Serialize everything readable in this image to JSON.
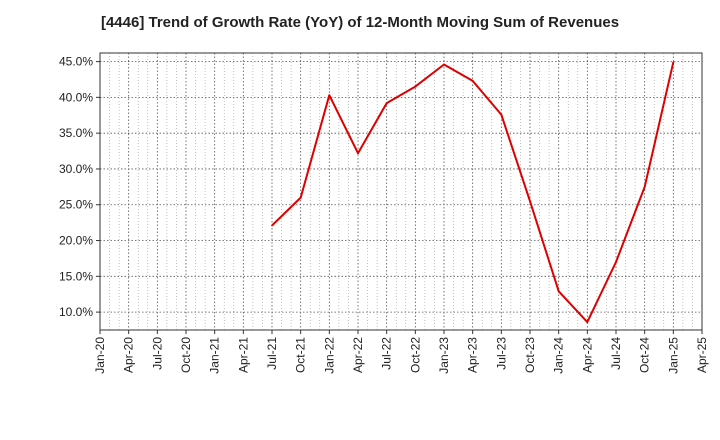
{
  "chart_data": {
    "type": "line",
    "title": "[4446]  Trend of Growth Rate (YoY) of 12-Month Moving Sum of Revenues",
    "xlabel": "",
    "ylabel": "",
    "x_ticks": [
      "Jan-20",
      "Apr-20",
      "Jul-20",
      "Oct-20",
      "Jan-21",
      "Apr-21",
      "Jul-21",
      "Oct-21",
      "Jan-22",
      "Apr-22",
      "Jul-22",
      "Oct-22",
      "Jan-23",
      "Apr-23",
      "Jul-23",
      "Oct-23",
      "Jan-24",
      "Apr-24",
      "Jul-24",
      "Oct-24",
      "Jan-25",
      "Apr-25"
    ],
    "y_ticks": [
      "10.0%",
      "15.0%",
      "20.0%",
      "25.0%",
      "30.0%",
      "35.0%",
      "40.0%",
      "45.0%"
    ],
    "ylim": [
      7.5,
      46.2
    ],
    "grid": true,
    "series": [
      {
        "color": "#dd0000",
        "points": [
          {
            "x": "Jul-21",
            "y": 22.1
          },
          {
            "x": "Oct-21",
            "y": 26.0
          },
          {
            "x": "Jan-22",
            "y": 40.3
          },
          {
            "x": "Apr-22",
            "y": 32.2
          },
          {
            "x": "Jul-22",
            "y": 39.2
          },
          {
            "x": "Oct-22",
            "y": 41.5
          },
          {
            "x": "Jan-23",
            "y": 44.6
          },
          {
            "x": "Apr-23",
            "y": 42.3
          },
          {
            "x": "Jul-23",
            "y": 37.6
          },
          {
            "x": "Oct-23",
            "y": 25.5
          },
          {
            "x": "Jan-24",
            "y": 12.9
          },
          {
            "x": "Apr-24",
            "y": 8.6
          },
          {
            "x": "Jul-24",
            "y": 17.0
          },
          {
            "x": "Oct-24",
            "y": 27.5
          },
          {
            "x": "Jan-25",
            "y": 44.9
          }
        ]
      }
    ]
  }
}
